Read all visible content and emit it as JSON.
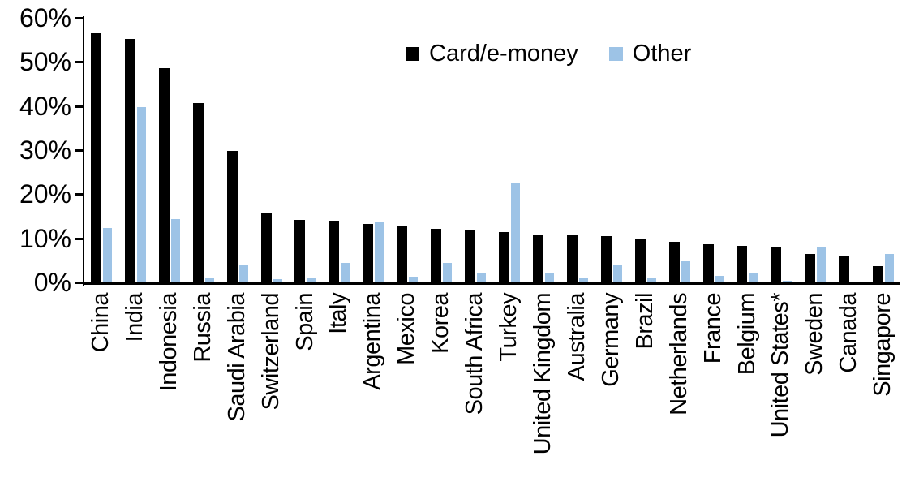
{
  "chart_data": {
    "type": "bar",
    "title": "",
    "xlabel": "",
    "ylabel": "",
    "ylim": [
      0,
      60
    ],
    "ytick_step": 10,
    "ytick_labels": [
      "0%",
      "10%",
      "20%",
      "30%",
      "40%",
      "50%",
      "60%"
    ],
    "grid": false,
    "legend_position": "top-center",
    "categories": [
      "China",
      "India",
      "Indonesia",
      "Russia",
      "Saudi Arabia",
      "Switzerland",
      "Spain",
      "Italy",
      "Argentina",
      "Mexico",
      "Korea",
      "South Africa",
      "Turkey",
      "United Kingdom",
      "Australia",
      "Germany",
      "Brazil",
      "Netherlands",
      "France",
      "Belgium",
      "United States*",
      "Sweden",
      "Canada",
      "Singapore"
    ],
    "series": [
      {
        "name": "Card/e-money",
        "color": "#000000",
        "values": [
          56.5,
          55.2,
          48.5,
          40.6,
          29.9,
          15.6,
          14.2,
          14.0,
          13.3,
          12.9,
          12.2,
          11.7,
          11.5,
          10.9,
          10.7,
          10.5,
          10.0,
          9.2,
          8.6,
          8.2,
          8.0,
          6.5,
          5.9,
          3.7
        ]
      },
      {
        "name": "Other",
        "color": "#9DC3E6",
        "values": [
          12.3,
          39.8,
          14.4,
          1.0,
          3.9,
          0.7,
          1.0,
          4.5,
          13.8,
          1.3,
          4.5,
          2.2,
          22.4,
          2.3,
          1.0,
          3.9,
          1.1,
          4.8,
          1.5,
          2.0,
          0.3,
          8.1,
          0.0,
          6.5
        ]
      }
    ]
  },
  "colors": {
    "axis": "#000000",
    "background": "#ffffff",
    "series_card": "#000000",
    "series_other": "#9DC3E6"
  }
}
